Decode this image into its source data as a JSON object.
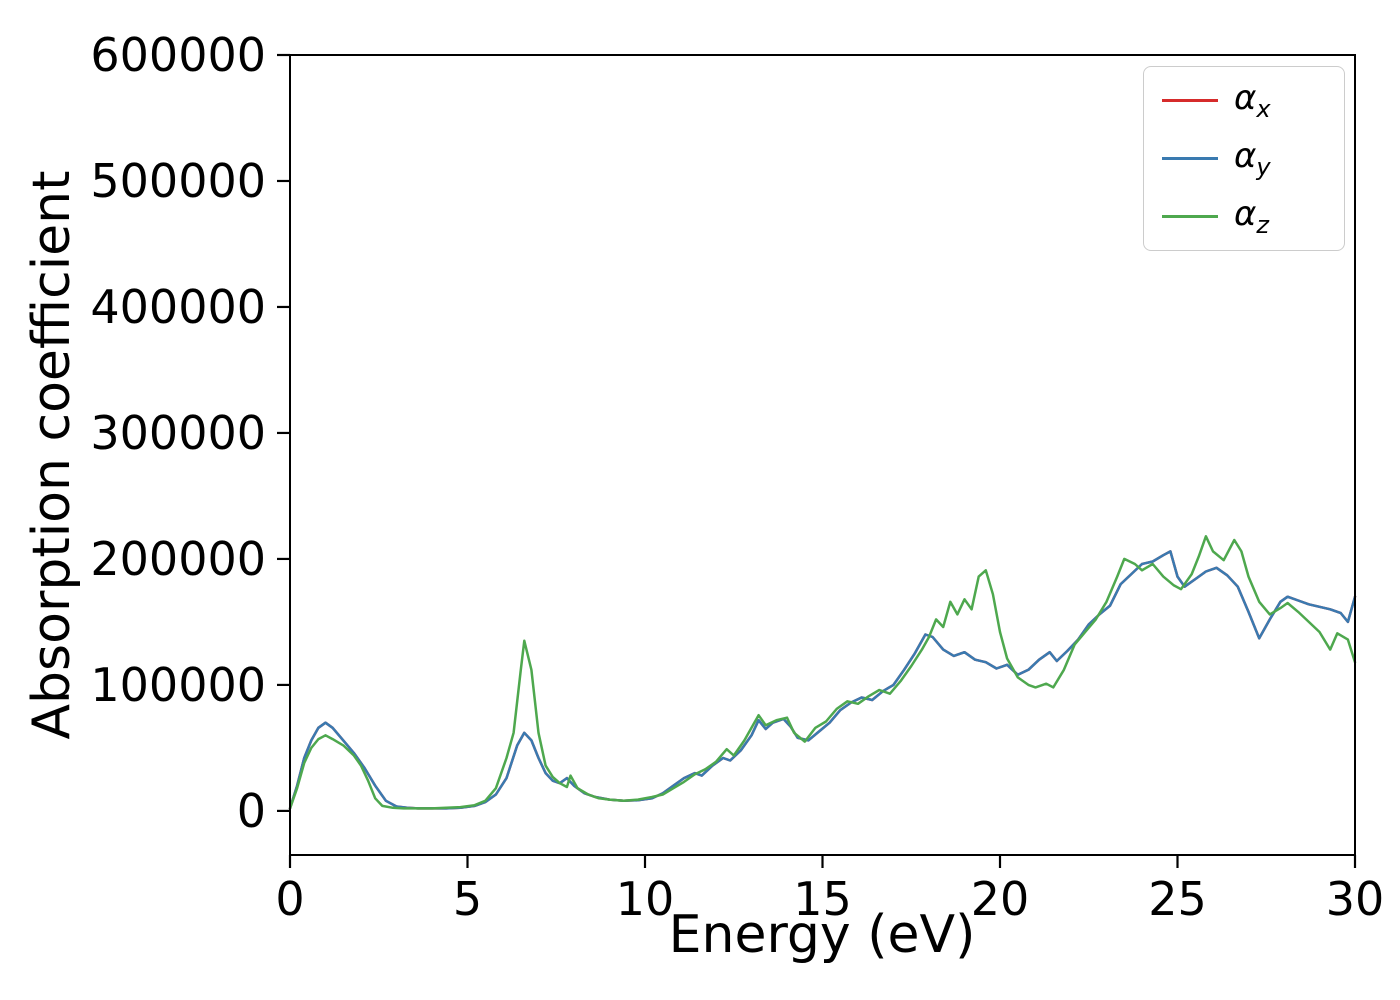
{
  "figure": {
    "background": "#ffffff"
  },
  "chart_data": {
    "type": "line",
    "title": "",
    "xlabel": "Energy (eV)",
    "ylabel": "Absorption coefficient",
    "xlim": [
      0,
      30
    ],
    "ylim": [
      0,
      600000
    ],
    "ylim_draw": [
      -35000,
      600000
    ],
    "xticks": [
      0,
      5,
      10,
      15,
      20,
      25,
      30
    ],
    "yticks": [
      0,
      100000,
      200000,
      300000,
      400000,
      500000,
      600000
    ],
    "grid": false,
    "legend_position": "upper right",
    "series": [
      {
        "name": "alpha_x",
        "label": "α_x",
        "label_symbol": "α",
        "label_sub": "x",
        "color": "#d62b2b",
        "points": "alpha_y",
        "note": "α_x curve coincides with α_y and is hidden beneath it; only visible in legend"
      },
      {
        "name": "alpha_y",
        "label": "α_y",
        "label_symbol": "α",
        "label_sub": "y",
        "color": "#3a7ab0",
        "points": [
          [
            0,
            2000
          ],
          [
            0.2,
            20000
          ],
          [
            0.4,
            42000
          ],
          [
            0.6,
            56000
          ],
          [
            0.8,
            66000
          ],
          [
            1.0,
            70000
          ],
          [
            1.2,
            66000
          ],
          [
            1.5,
            56000
          ],
          [
            1.8,
            46000
          ],
          [
            2.1,
            34000
          ],
          [
            2.4,
            20000
          ],
          [
            2.7,
            8000
          ],
          [
            3.0,
            3500
          ],
          [
            3.3,
            2500
          ],
          [
            3.6,
            2000
          ],
          [
            4.0,
            2000
          ],
          [
            4.4,
            2000
          ],
          [
            4.8,
            2500
          ],
          [
            5.2,
            4000
          ],
          [
            5.5,
            7000
          ],
          [
            5.8,
            13000
          ],
          [
            6.1,
            26000
          ],
          [
            6.4,
            52000
          ],
          [
            6.6,
            62000
          ],
          [
            6.8,
            56000
          ],
          [
            7.0,
            42000
          ],
          [
            7.2,
            30000
          ],
          [
            7.4,
            24000
          ],
          [
            7.6,
            22000
          ],
          [
            7.8,
            26000
          ],
          [
            8.0,
            20000
          ],
          [
            8.3,
            14000
          ],
          [
            8.6,
            11000
          ],
          [
            9.0,
            9000
          ],
          [
            9.4,
            8000
          ],
          [
            9.8,
            8500
          ],
          [
            10.2,
            10000
          ],
          [
            10.5,
            14000
          ],
          [
            10.8,
            20000
          ],
          [
            11.1,
            26000
          ],
          [
            11.4,
            30000
          ],
          [
            11.6,
            28000
          ],
          [
            11.9,
            36000
          ],
          [
            12.2,
            42000
          ],
          [
            12.4,
            40000
          ],
          [
            12.7,
            48000
          ],
          [
            13.0,
            60000
          ],
          [
            13.2,
            72000
          ],
          [
            13.4,
            65000
          ],
          [
            13.6,
            70000
          ],
          [
            13.9,
            73000
          ],
          [
            14.1,
            67000
          ],
          [
            14.3,
            58000
          ],
          [
            14.6,
            56000
          ],
          [
            14.9,
            63000
          ],
          [
            15.2,
            70000
          ],
          [
            15.5,
            80000
          ],
          [
            15.8,
            86000
          ],
          [
            16.1,
            90000
          ],
          [
            16.4,
            88000
          ],
          [
            16.7,
            95000
          ],
          [
            17.0,
            100000
          ],
          [
            17.3,
            112000
          ],
          [
            17.6,
            125000
          ],
          [
            17.9,
            140000
          ],
          [
            18.1,
            138000
          ],
          [
            18.4,
            128000
          ],
          [
            18.7,
            123000
          ],
          [
            19.0,
            126000
          ],
          [
            19.3,
            120000
          ],
          [
            19.6,
            118000
          ],
          [
            19.9,
            113000
          ],
          [
            20.2,
            116000
          ],
          [
            20.5,
            108000
          ],
          [
            20.8,
            112000
          ],
          [
            21.1,
            120000
          ],
          [
            21.4,
            126000
          ],
          [
            21.6,
            119000
          ],
          [
            21.9,
            127000
          ],
          [
            22.2,
            136000
          ],
          [
            22.5,
            148000
          ],
          [
            22.8,
            156000
          ],
          [
            23.1,
            163000
          ],
          [
            23.4,
            180000
          ],
          [
            23.7,
            188000
          ],
          [
            24.0,
            196000
          ],
          [
            24.3,
            198000
          ],
          [
            24.6,
            203000
          ],
          [
            24.8,
            206000
          ],
          [
            25.0,
            186000
          ],
          [
            25.2,
            178000
          ],
          [
            25.5,
            184000
          ],
          [
            25.8,
            190000
          ],
          [
            26.1,
            193000
          ],
          [
            26.4,
            187000
          ],
          [
            26.7,
            178000
          ],
          [
            27.0,
            158000
          ],
          [
            27.3,
            137000
          ],
          [
            27.6,
            152000
          ],
          [
            27.9,
            166000
          ],
          [
            28.1,
            170000
          ],
          [
            28.4,
            167000
          ],
          [
            28.7,
            164000
          ],
          [
            29.0,
            162000
          ],
          [
            29.3,
            160000
          ],
          [
            29.6,
            157000
          ],
          [
            29.8,
            150000
          ],
          [
            30.0,
            170000
          ]
        ]
      },
      {
        "name": "alpha_z",
        "label": "α_z",
        "label_symbol": "α",
        "label_sub": "z",
        "color": "#4ea84e",
        "points": [
          [
            0,
            2000
          ],
          [
            0.2,
            18000
          ],
          [
            0.4,
            38000
          ],
          [
            0.6,
            50000
          ],
          [
            0.8,
            57000
          ],
          [
            1.0,
            60000
          ],
          [
            1.2,
            57000
          ],
          [
            1.5,
            52000
          ],
          [
            1.8,
            44000
          ],
          [
            2.0,
            36000
          ],
          [
            2.2,
            24000
          ],
          [
            2.4,
            10000
          ],
          [
            2.6,
            4000
          ],
          [
            2.9,
            2500
          ],
          [
            3.2,
            2000
          ],
          [
            3.6,
            2000
          ],
          [
            4.0,
            2000
          ],
          [
            4.4,
            2500
          ],
          [
            4.8,
            3000
          ],
          [
            5.2,
            4500
          ],
          [
            5.5,
            8000
          ],
          [
            5.8,
            18000
          ],
          [
            6.1,
            42000
          ],
          [
            6.3,
            62000
          ],
          [
            6.5,
            112000
          ],
          [
            6.6,
            135000
          ],
          [
            6.8,
            112000
          ],
          [
            7.0,
            62000
          ],
          [
            7.2,
            36000
          ],
          [
            7.4,
            27000
          ],
          [
            7.6,
            22000
          ],
          [
            7.8,
            19000
          ],
          [
            7.9,
            28000
          ],
          [
            8.1,
            18000
          ],
          [
            8.4,
            13000
          ],
          [
            8.7,
            10000
          ],
          [
            9.0,
            9000
          ],
          [
            9.4,
            8000
          ],
          [
            9.8,
            9000
          ],
          [
            10.2,
            11000
          ],
          [
            10.5,
            13000
          ],
          [
            10.8,
            18000
          ],
          [
            11.1,
            23000
          ],
          [
            11.4,
            29000
          ],
          [
            11.7,
            33000
          ],
          [
            12.0,
            39000
          ],
          [
            12.3,
            49000
          ],
          [
            12.5,
            44000
          ],
          [
            12.8,
            56000
          ],
          [
            13.0,
            66000
          ],
          [
            13.2,
            76000
          ],
          [
            13.4,
            68000
          ],
          [
            13.7,
            72000
          ],
          [
            14.0,
            74000
          ],
          [
            14.2,
            62000
          ],
          [
            14.5,
            55000
          ],
          [
            14.8,
            66000
          ],
          [
            15.1,
            71000
          ],
          [
            15.4,
            81000
          ],
          [
            15.7,
            87000
          ],
          [
            16.0,
            85000
          ],
          [
            16.3,
            91000
          ],
          [
            16.6,
            96000
          ],
          [
            16.9,
            93000
          ],
          [
            17.2,
            103000
          ],
          [
            17.5,
            115000
          ],
          [
            17.8,
            128000
          ],
          [
            18.0,
            138000
          ],
          [
            18.2,
            152000
          ],
          [
            18.4,
            146000
          ],
          [
            18.6,
            166000
          ],
          [
            18.8,
            156000
          ],
          [
            19.0,
            168000
          ],
          [
            19.2,
            160000
          ],
          [
            19.4,
            186000
          ],
          [
            19.6,
            191000
          ],
          [
            19.8,
            172000
          ],
          [
            20.0,
            142000
          ],
          [
            20.2,
            121000
          ],
          [
            20.5,
            106000
          ],
          [
            20.8,
            100000
          ],
          [
            21.0,
            98000
          ],
          [
            21.3,
            101000
          ],
          [
            21.5,
            98000
          ],
          [
            21.8,
            112000
          ],
          [
            22.1,
            132000
          ],
          [
            22.4,
            142000
          ],
          [
            22.7,
            152000
          ],
          [
            23.0,
            166000
          ],
          [
            23.3,
            186000
          ],
          [
            23.5,
            200000
          ],
          [
            23.8,
            196000
          ],
          [
            24.0,
            191000
          ],
          [
            24.3,
            196000
          ],
          [
            24.6,
            186000
          ],
          [
            24.9,
            179000
          ],
          [
            25.1,
            176000
          ],
          [
            25.4,
            188000
          ],
          [
            25.6,
            202000
          ],
          [
            25.8,
            218000
          ],
          [
            26.0,
            206000
          ],
          [
            26.3,
            199000
          ],
          [
            26.6,
            215000
          ],
          [
            26.8,
            206000
          ],
          [
            27.0,
            186000
          ],
          [
            27.3,
            166000
          ],
          [
            27.6,
            156000
          ],
          [
            27.9,
            161000
          ],
          [
            28.1,
            165000
          ],
          [
            28.4,
            158000
          ],
          [
            28.7,
            150000
          ],
          [
            29.0,
            142000
          ],
          [
            29.3,
            128000
          ],
          [
            29.5,
            141000
          ],
          [
            29.8,
            136000
          ],
          [
            30.0,
            118000
          ]
        ]
      }
    ]
  }
}
